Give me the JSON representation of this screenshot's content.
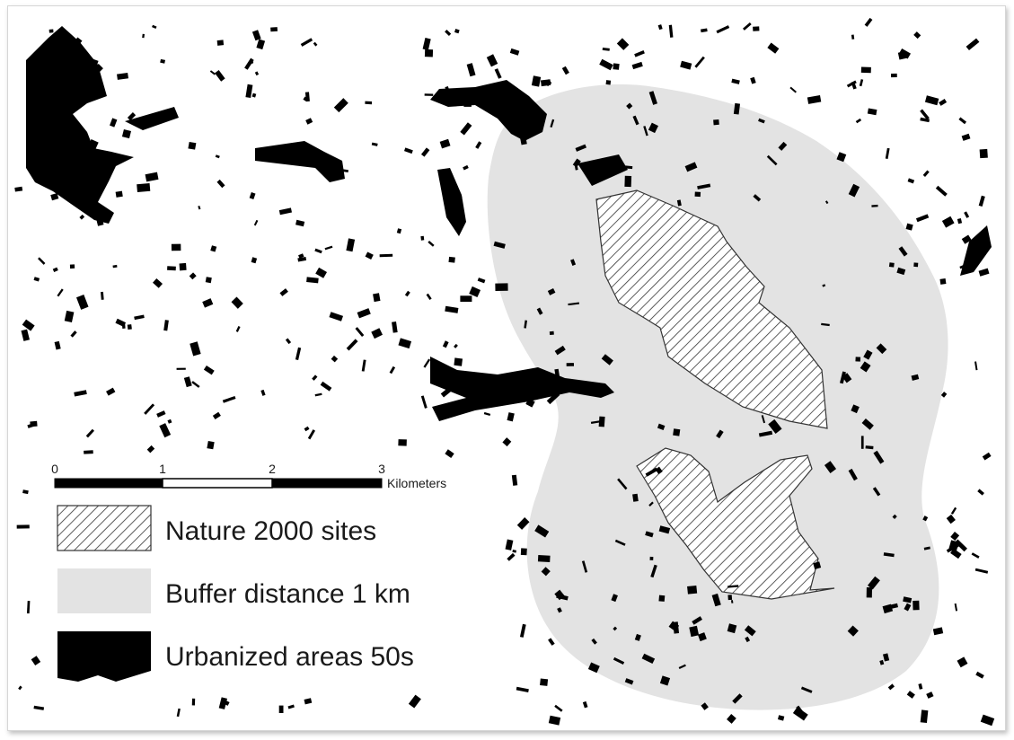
{
  "map": {
    "scale_bar": {
      "ticks": [
        "0",
        "1",
        "2",
        "3"
      ],
      "unit": "Kilometers"
    },
    "legend": {
      "items": [
        {
          "label": "Nature 2000 sites",
          "symbol": "hatched-polygon"
        },
        {
          "label": "Buffer distance 1 km",
          "symbol": "light-gray-fill"
        },
        {
          "label": "Urbanized areas 50s",
          "symbol": "black-fill"
        }
      ]
    },
    "colors": {
      "buffer": "#e3e3e3",
      "urban": "#000000",
      "hatch": "#333333",
      "background": "#ffffff"
    }
  }
}
